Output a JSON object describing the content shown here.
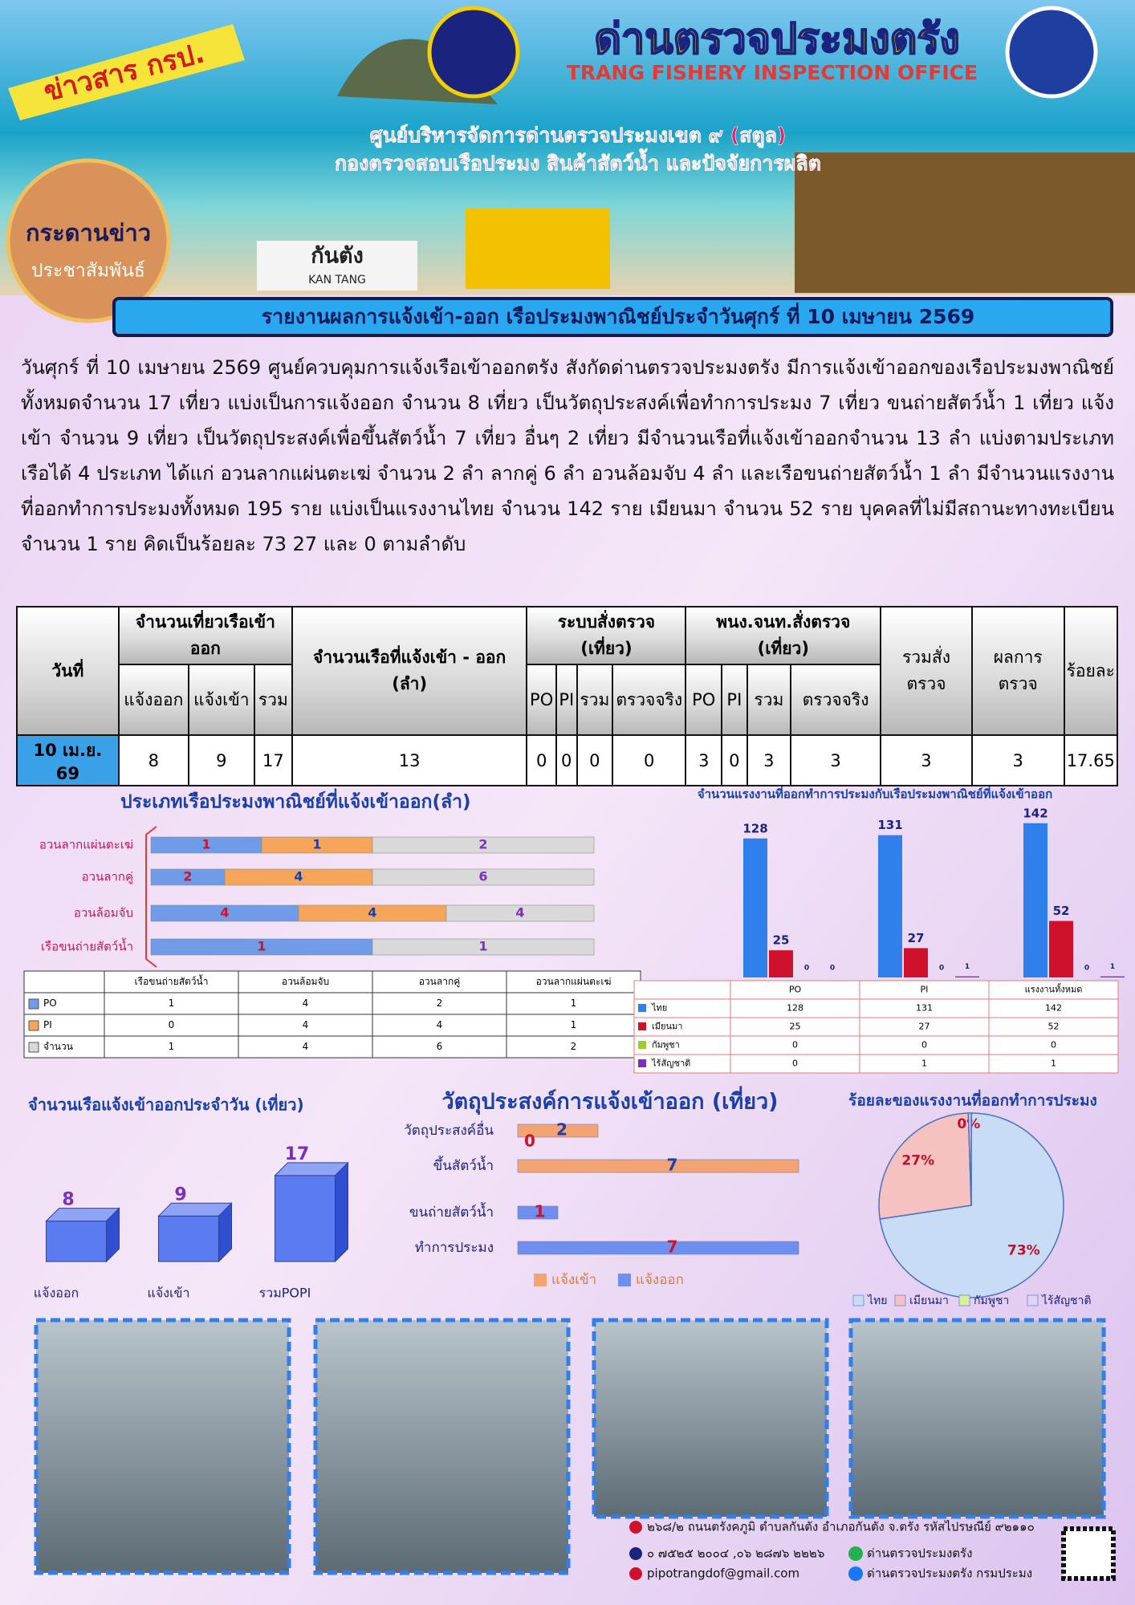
{
  "header": {
    "badge": "ข่าวสาร กรป.",
    "title_th": "ด่านตรวจประมงตรัง",
    "title_en": "TRANG FISHERY INSPECTION OFFICE",
    "line1": "ศูนย์บริหารจัดการด่านตรวจประมงเขต ๙ (สตูล)",
    "line2": "กองตรวจสอบเรือประมง สินค้าสัตว์น้ำ และปัจจัยการผลิต",
    "board_top": "กระดานข่าว",
    "board_bottom": "ประชาสัมพันธ์",
    "sign_th": "กันตัง",
    "sign_en": "KAN TANG"
  },
  "report_title": "รายงานผลการแจ้งเข้า-ออก เรือประมงพาณิชย์ประจำวันศุกร์  ที่ 10 เมษายน 2569",
  "paragraph": "วันศุกร์  ที่ 10 เมษายน 2569 ศูนย์ควบคุมการแจ้งเรือเข้าออกตรัง สังกัดด่านตรวจประมงตรัง มีการแจ้งเข้าออกของเรือประมงพาณิชย์ ทั้งหมดจำนวน 17 เที่ยว แบ่งเป็นการแจ้งออก จำนวน 8 เที่ยว เป็นวัตถุประสงค์เพื่อทำการประมง 7 เที่ยว ขนถ่ายสัตว์น้ำ 1 เที่ยว แจ้งเข้า จำนวน 9 เที่ยว  เป็นวัตถุประสงค์เพื่อขึ้นสัตว์น้ำ 7 เที่ยว อื่นๆ 2 เที่ยว มีจำนวนเรือที่แจ้งเข้าออกจำนวน 13 ลำ แบ่งตามประเภทเรือได้ 4 ประเภท ได้แก่ อวนลากแผ่นตะเฆ่ จำนวน 2 ลำ ลากคู่ 6 ลำ อวนล้อมจับ 4 ลำ และเรือขนถ่ายสัตว์น้ำ 1 ลำ มีจำนวนแรงงานที่ออกทำการประมงทั้งหมด 195 ราย แบ่งเป็นแรงงานไทย จำนวน 142 ราย เมียนมา จำนวน 52 ราย บุคคลที่ไม่มีสถานะทางทะเบียน จำนวน 1 ราย คิดเป็นร้อยละ 73  27 และ 0 ตามลำดับ",
  "table": {
    "headers": {
      "date": "วันที่",
      "trips": "จำนวนเที่ยวเรือเข้าออก",
      "vessels": "จำนวนเรือที่แจ้งเข้า - ออก (ลำ)",
      "system": "ระบบสั่งตรวจ (เที่ยว)",
      "officer": "พนง.จนท.สั่งตรวจ (เที่ยว)",
      "total_ordered": "รวมสั่งตรวจ",
      "result": "ผลการตรวจ",
      "percent": "ร้อยละ"
    },
    "sub_headers": [
      "แจ้งออก",
      "แจ้งเข้า",
      "รวม",
      "PO",
      "PI",
      "รวม",
      "ตรวจจริง",
      "PO",
      "PI",
      "รวม",
      "ตรวจจริง"
    ],
    "rows": [
      [
        "10 เม.ย. 69",
        8,
        9,
        17,
        13,
        0,
        0,
        0,
        0,
        3,
        0,
        3,
        3,
        3,
        3,
        17.65
      ]
    ]
  },
  "chart_data": [
    {
      "type": "bar",
      "orientation": "horizontal",
      "stacked": "percent",
      "data_table": true,
      "title": "ประเภทเรือประมงพาณิชย์ที่แจ้งเข้าออก(ลำ)",
      "categories": [
        "อวนลากแผ่นตะเฆ่",
        "อวนลากคู่",
        "อวนล้อมจับ",
        "เรือขนถ่ายสัตว์น้ำ"
      ],
      "series": [
        {
          "name": "PO",
          "color": "#6f9be8",
          "values": [
            1,
            2,
            4,
            1
          ]
        },
        {
          "name": "PI",
          "color": "#f5a65b",
          "values": [
            1,
            4,
            4,
            0
          ]
        },
        {
          "name": "จำนวน",
          "color": "#d9d9d9",
          "values": [
            2,
            6,
            4,
            1
          ]
        }
      ]
    },
    {
      "type": "bar",
      "data_table": true,
      "title": "จำนวนแรงงานที่ออกทำการประมงกับเรือประมงพาณิชย์ที่แจ้งเข้าออก",
      "categories": [
        "PO",
        "PI",
        "แรงงานทั้งหมด"
      ],
      "series": [
        {
          "name": "ไทย",
          "color": "#2f80ed",
          "values": [
            128,
            131,
            142
          ]
        },
        {
          "name": "เมียนมา",
          "color": "#d0112b",
          "values": [
            25,
            27,
            52
          ]
        },
        {
          "name": "กัมพูชา",
          "color": "#9acd32",
          "values": [
            0,
            0,
            0
          ]
        },
        {
          "name": "ไร้สัญชาติ",
          "color": "#7b2fbf",
          "values": [
            0,
            1,
            1
          ]
        }
      ],
      "ylim": [
        0,
        150
      ]
    },
    {
      "type": "bar",
      "three_d": true,
      "title": "จำนวนเรือแจ้งเข้าออกประจำวัน (เที่ยว)",
      "categories": [
        "แจ้งออก",
        "แจ้งเข้า",
        "รวมPOPI"
      ],
      "values": [
        8,
        9,
        17
      ],
      "color": "#5b7cf0",
      "ylim": [
        0,
        20
      ]
    },
    {
      "type": "bar",
      "orientation": "horizontal",
      "title": "วัตถุประสงค์การแจ้งเข้าออก (เที่ยว)",
      "categories": [
        "วัตถุประสงค์อื่น",
        "ขึ้นสัตว์น้ำ",
        "ขนถ่ายสัตว์น้ำ",
        "ทำการประมง"
      ],
      "series": [
        {
          "name": "แจ้งเข้า",
          "color": "#f4a373",
          "values": [
            2,
            7,
            null,
            null
          ]
        },
        {
          "name": "แจ้งออก",
          "color": "#6f8ff0",
          "values": [
            0,
            null,
            1,
            7
          ]
        }
      ],
      "xlim": [
        0,
        7
      ]
    },
    {
      "type": "pie",
      "title": "ร้อยละของแรงงานที่ออกทำการประมง",
      "categories": [
        "ไทย",
        "เมียนมา",
        "กัมพูชา",
        "ไร้สัญชาติ"
      ],
      "values": [
        73,
        27,
        0,
        0.5
      ],
      "value_labels": [
        "73%",
        "27%",
        "0%",
        null
      ],
      "colors": [
        "#c9dcf5",
        "#f6c1c1",
        "#d8ef9a",
        "#e3d2f5"
      ]
    }
  ],
  "contact": {
    "address": "๒๖๘/๒ ถนนตรังคภูมิ ตำบลกันตัง อำเภอกันตัง จ.ตรัง รหัสไปรษณีย์ ๙๒๑๑๐",
    "phone": "๐ ๗๕๒๕ ๒๐๐๔ ,๐๖ ๒๘๗๖ ๒๒๒๖",
    "email": "pipotrangdof@gmail.com",
    "line": "ด่านตรวจประมงตรัง",
    "facebook": "ด่านตรวจประมงตรัง กรมประมง"
  }
}
